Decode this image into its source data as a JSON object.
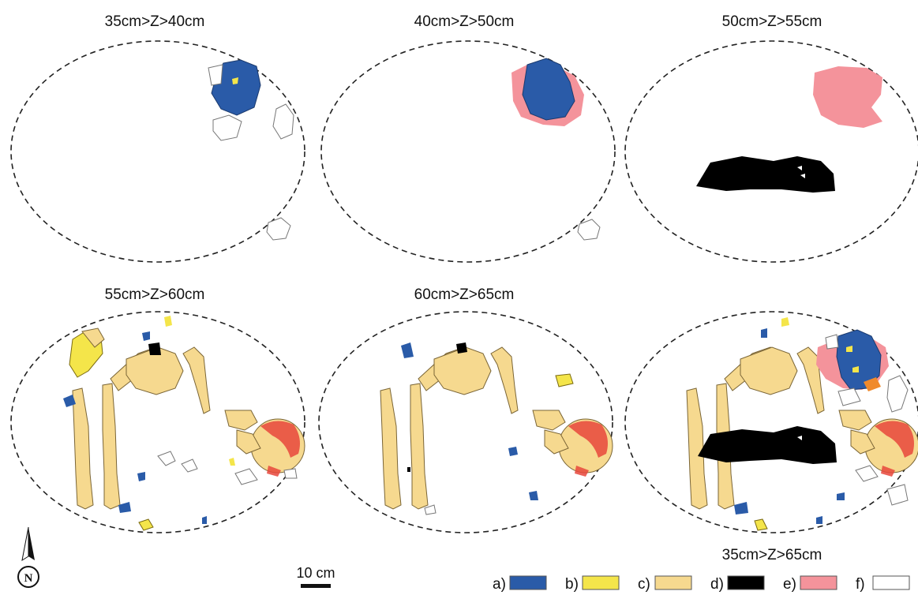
{
  "panels": [
    {
      "title": "35cm>Z>40cm"
    },
    {
      "title": "40cm>Z>50cm"
    },
    {
      "title": "50cm>Z>55cm"
    },
    {
      "title": "55cm>Z>60cm"
    },
    {
      "title": "60cm>Z>65cm"
    },
    {
      "title": "35cm>Z>65cm"
    }
  ],
  "scale_bar": {
    "label": "10 cm"
  },
  "north_arrow": {
    "letter": "N"
  },
  "legend": [
    {
      "label": "a)",
      "color": "#2a5ba8"
    },
    {
      "label": "b)",
      "color": "#f4e54a"
    },
    {
      "label": "c)",
      "color": "#f6d98f"
    },
    {
      "label": "d)",
      "color": "#000000"
    },
    {
      "label": "e)",
      "color": "#f4939b"
    },
    {
      "label": "f)",
      "color": "#ffffff"
    }
  ],
  "colors": {
    "blue": "#2a5ba8",
    "yellow": "#f4e54a",
    "bone": "#f6d98f",
    "black": "#000000",
    "pink": "#f4939b",
    "white": "#ffffff",
    "red": "#e8463c",
    "orange": "#f08a2c"
  }
}
